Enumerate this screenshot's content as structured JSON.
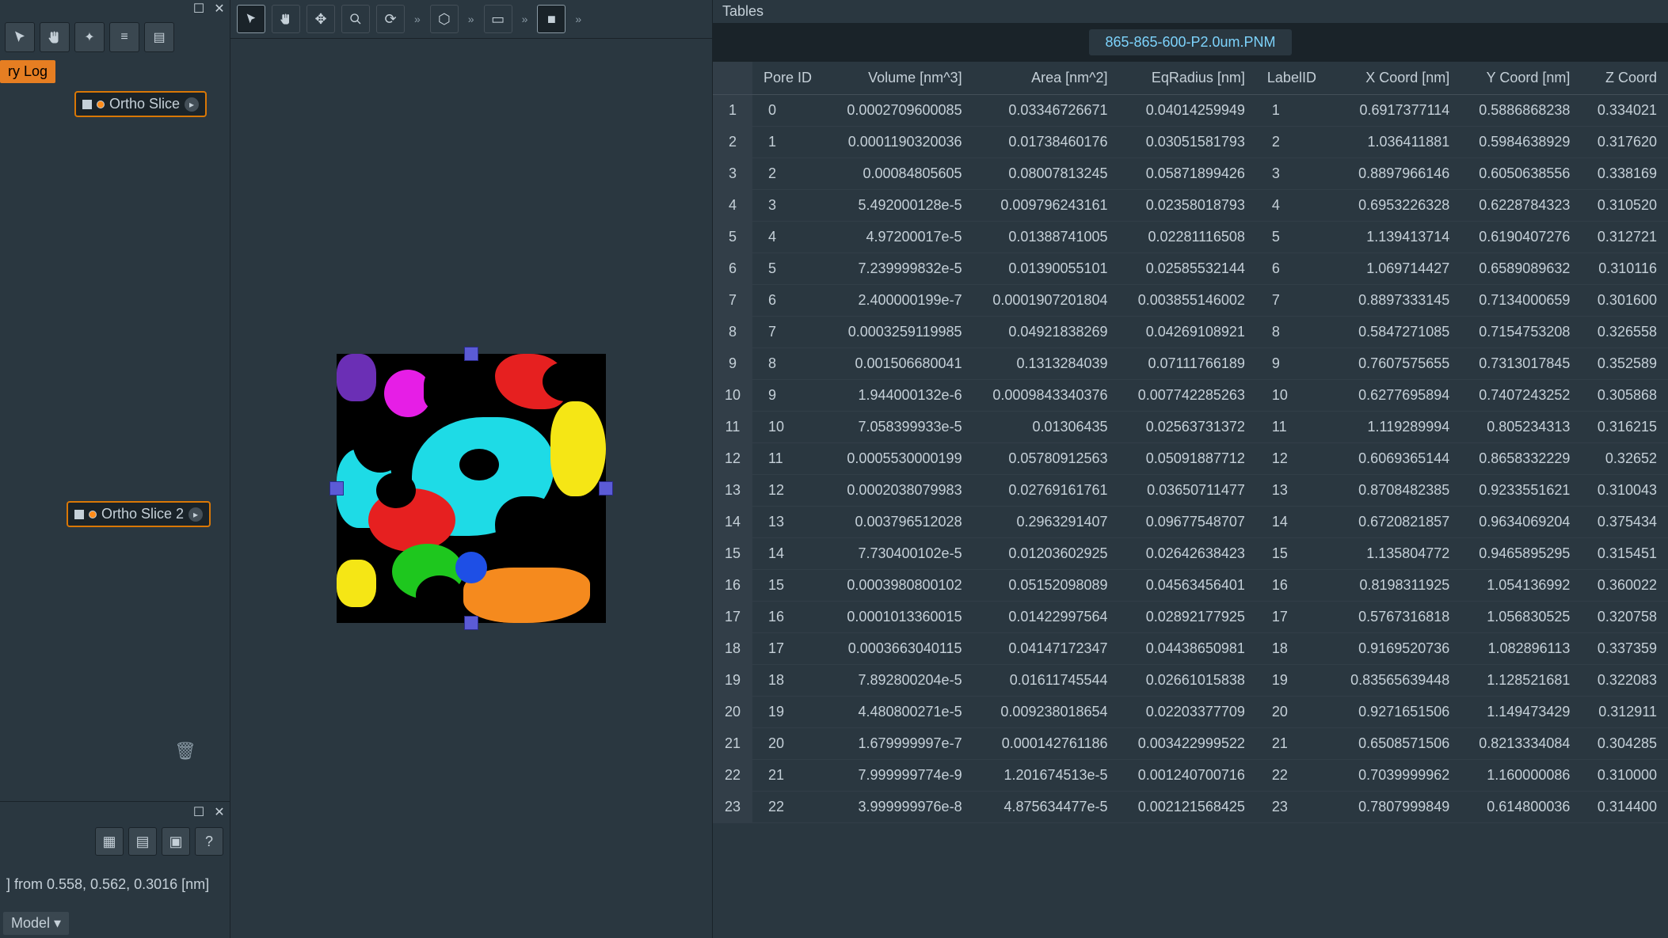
{
  "left": {
    "log_tab_label": "ry Log",
    "node1_label": "Ortho Slice",
    "node2_label": "Ortho Slice 2",
    "coord_text": "] from 0.558, 0.562, 0.3016 [nm]",
    "model_label": "Model"
  },
  "center": {
    "toolbar_icons": [
      "pointer",
      "hand",
      "move",
      "zoom",
      "refresh",
      "expand1",
      "cube",
      "expand2",
      "view",
      "expand3",
      "square",
      "expand4"
    ]
  },
  "tables": {
    "panel_label": "Tables",
    "file_tab": "865-865-600-P2.0um.PNM",
    "columns": [
      "",
      "Pore ID",
      "Volume [nm^3]",
      "Area [nm^2]",
      "EqRadius [nm]",
      "LabelID",
      "X Coord [nm]",
      "Y Coord [nm]",
      "Z Coord"
    ],
    "rows": [
      [
        "1",
        "0",
        "0.0002709600085",
        "0.03346726671",
        "0.04014259949",
        "1",
        "0.6917377114",
        "0.5886868238",
        "0.334021"
      ],
      [
        "2",
        "1",
        "0.0001190320036",
        "0.01738460176",
        "0.03051581793",
        "2",
        "1.036411881",
        "0.5984638929",
        "0.317620"
      ],
      [
        "3",
        "2",
        "0.00084805605",
        "0.08007813245",
        "0.05871899426",
        "3",
        "0.8897966146",
        "0.6050638556",
        "0.338169"
      ],
      [
        "4",
        "3",
        "5.492000128e-5",
        "0.009796243161",
        "0.02358018793",
        "4",
        "0.6953226328",
        "0.6228784323",
        "0.310520"
      ],
      [
        "5",
        "4",
        "4.97200017e-5",
        "0.01388741005",
        "0.02281116508",
        "5",
        "1.139413714",
        "0.6190407276",
        "0.312721"
      ],
      [
        "6",
        "5",
        "7.239999832e-5",
        "0.01390055101",
        "0.02585532144",
        "6",
        "1.069714427",
        "0.6589089632",
        "0.310116"
      ],
      [
        "7",
        "6",
        "2.400000199e-7",
        "0.0001907201804",
        "0.003855146002",
        "7",
        "0.8897333145",
        "0.7134000659",
        "0.301600"
      ],
      [
        "8",
        "7",
        "0.0003259119985",
        "0.04921838269",
        "0.04269108921",
        "8",
        "0.5847271085",
        "0.7154753208",
        "0.326558"
      ],
      [
        "9",
        "8",
        "0.001506680041",
        "0.1313284039",
        "0.07111766189",
        "9",
        "0.7607575655",
        "0.7313017845",
        "0.352589"
      ],
      [
        "10",
        "9",
        "1.944000132e-6",
        "0.0009843340376",
        "0.007742285263",
        "10",
        "0.6277695894",
        "0.7407243252",
        "0.305868"
      ],
      [
        "11",
        "10",
        "7.058399933e-5",
        "0.01306435",
        "0.02563731372",
        "11",
        "1.119289994",
        "0.805234313",
        "0.316215"
      ],
      [
        "12",
        "11",
        "0.0005530000199",
        "0.05780912563",
        "0.05091887712",
        "12",
        "0.6069365144",
        "0.8658332229",
        "0.32652"
      ],
      [
        "13",
        "12",
        "0.0002038079983",
        "0.02769161761",
        "0.03650711477",
        "13",
        "0.8708482385",
        "0.9233551621",
        "0.310043"
      ],
      [
        "14",
        "13",
        "0.003796512028",
        "0.2963291407",
        "0.09677548707",
        "14",
        "0.6720821857",
        "0.9634069204",
        "0.375434"
      ],
      [
        "15",
        "14",
        "7.730400102e-5",
        "0.01203602925",
        "0.02642638423",
        "15",
        "1.135804772",
        "0.9465895295",
        "0.315451"
      ],
      [
        "16",
        "15",
        "0.0003980800102",
        "0.05152098089",
        "0.04563456401",
        "16",
        "0.8198311925",
        "1.054136992",
        "0.360022"
      ],
      [
        "17",
        "16",
        "0.0001013360015",
        "0.01422997564",
        "0.02892177925",
        "17",
        "0.5767316818",
        "1.056830525",
        "0.320758"
      ],
      [
        "18",
        "17",
        "0.0003663040115",
        "0.04147172347",
        "0.04438650981",
        "18",
        "0.9169520736",
        "1.082896113",
        "0.337359"
      ],
      [
        "19",
        "18",
        "7.892800204e-5",
        "0.01611745544",
        "0.02661015838",
        "19",
        "0.83565639448",
        "1.128521681",
        "0.322083"
      ],
      [
        "20",
        "19",
        "4.480800271e-5",
        "0.009238018654",
        "0.02203377709",
        "20",
        "0.9271651506",
        "1.149473429",
        "0.312911"
      ],
      [
        "21",
        "20",
        "1.679999997e-7",
        "0.000142761186",
        "0.003422999522",
        "21",
        "0.6508571506",
        "0.8213334084",
        "0.304285"
      ],
      [
        "22",
        "21",
        "7.999999774e-9",
        "1.201674513e-5",
        "0.001240700716",
        "22",
        "0.7039999962",
        "1.160000086",
        "0.310000"
      ],
      [
        "23",
        "22",
        "3.999999976e-8",
        "4.875634477e-5",
        "0.002121568425",
        "23",
        "0.7807999849",
        "0.614800036",
        "0.314400"
      ]
    ]
  },
  "ortho_colors": {
    "bg": "#000000",
    "cyan": "#1edbe6",
    "red": "#e62020",
    "green": "#1ec71e",
    "yellow": "#f5e615",
    "magenta": "#e61ee6",
    "orange": "#f58a1e",
    "purple": "#6b2fb5",
    "blue": "#1e4fe6"
  }
}
